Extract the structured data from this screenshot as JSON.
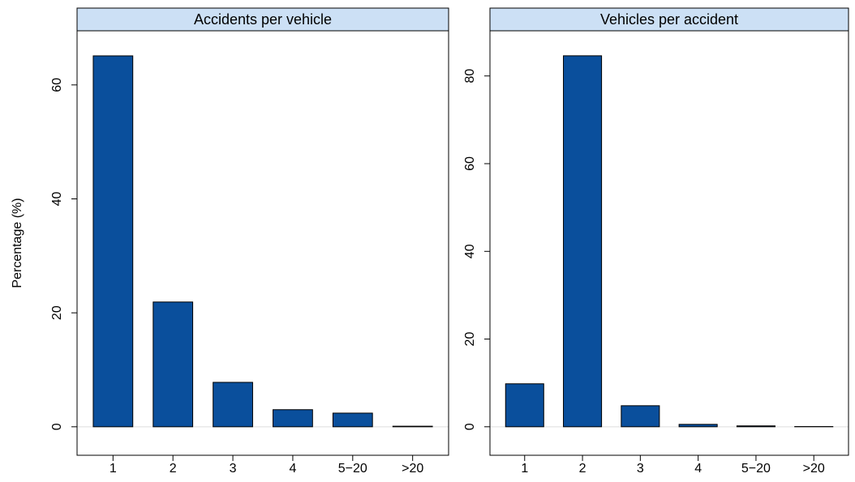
{
  "chart_data": [
    {
      "type": "bar",
      "title": "Accidents per vehicle",
      "y_label": "Percentage (%)",
      "categories": [
        "1",
        "2",
        "3",
        "4",
        "5−20",
        ">20"
      ],
      "values": [
        65.1,
        21.9,
        7.8,
        3.0,
        2.4,
        0.1
      ],
      "color": "#0a4f9c",
      "ylim": [
        -5,
        69.5
      ],
      "yticks": [
        0,
        20,
        40,
        60
      ]
    },
    {
      "type": "bar",
      "title": "Vehicles per accident",
      "categories": [
        "1",
        "2",
        "3",
        "4",
        "5−20",
        ">20"
      ],
      "values": [
        9.8,
        84.6,
        4.8,
        0.55,
        0.2,
        0.05
      ],
      "color": "#0a4f9c",
      "ylim": [
        -6.5,
        90.3
      ],
      "yticks": [
        0,
        20,
        40,
        60,
        80
      ]
    }
  ]
}
